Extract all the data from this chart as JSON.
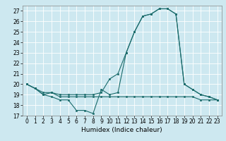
{
  "xlabel": "Humidex (Indice chaleur)",
  "xlim": [
    -0.5,
    23.5
  ],
  "ylim": [
    17,
    27.5
  ],
  "yticks": [
    17,
    18,
    19,
    20,
    21,
    22,
    23,
    24,
    25,
    26,
    27
  ],
  "xticks": [
    0,
    1,
    2,
    3,
    4,
    5,
    6,
    7,
    8,
    9,
    10,
    11,
    12,
    13,
    14,
    15,
    16,
    17,
    18,
    19,
    20,
    21,
    22,
    23
  ],
  "bg_color": "#cde8f0",
  "line_color": "#1a6b6b",
  "grid_color": "#ffffff",
  "line1_y": [
    20.0,
    19.6,
    19.0,
    18.8,
    18.5,
    18.5,
    17.5,
    17.5,
    17.2,
    19.5,
    19.0,
    19.2,
    23.0,
    25.0,
    26.5,
    26.7,
    27.2,
    27.2,
    26.7,
    20.0,
    19.5,
    19.0,
    18.8,
    18.5
  ],
  "line2_y": [
    20.0,
    19.6,
    19.0,
    19.2,
    18.8,
    18.8,
    18.8,
    18.8,
    18.8,
    18.8,
    18.8,
    18.8,
    18.8,
    18.8,
    18.8,
    18.8,
    18.8,
    18.8,
    18.8,
    18.8,
    18.8,
    18.5,
    18.5,
    18.5
  ],
  "line3_y": [
    20.0,
    19.6,
    19.2,
    19.2,
    19.0,
    19.0,
    19.0,
    19.0,
    19.0,
    19.2,
    20.5,
    21.0,
    23.0,
    25.0,
    26.5,
    26.7,
    27.2,
    27.2,
    26.7,
    20.0,
    19.5,
    19.0,
    18.8,
    18.5
  ],
  "tick_fontsize": 5.5,
  "xlabel_fontsize": 6.5
}
